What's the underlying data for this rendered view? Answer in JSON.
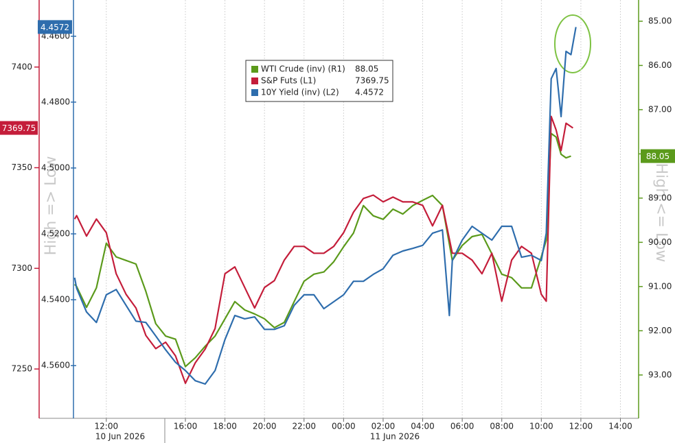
{
  "chart_data": {
    "type": "line",
    "x_axis_ticks_note_free": null,
    "xlim": [
      10.34,
      38.92
    ],
    "xticks": [
      {
        "value": 12,
        "label": "12:00"
      },
      {
        "value": 16,
        "label": "16:00"
      },
      {
        "value": 18,
        "label": "18:00"
      },
      {
        "value": 20,
        "label": "20:00"
      },
      {
        "value": 22,
        "label": "22:00"
      },
      {
        "value": 24,
        "label": "00:00"
      },
      {
        "value": 26,
        "label": "02:00"
      },
      {
        "value": 28,
        "label": "04:00"
      },
      {
        "value": 30,
        "label": "06:00"
      },
      {
        "value": 32,
        "label": "08:00"
      },
      {
        "value": 34,
        "label": "10:00"
      },
      {
        "value": 36,
        "label": "12:00"
      },
      {
        "value": 38,
        "label": "14:00"
      }
    ],
    "date_labels": [
      "10 Jun 2026",
      "11 Jun 2026"
    ],
    "ylabel": "High => Low",
    "y3label": "High <= Low",
    "ylim": [
      7225.5,
      7433.3
    ],
    "yticks": [
      7250,
      7300,
      7350,
      7400
    ],
    "y2lim": [
      4.576,
      4.449
    ],
    "y2ticks": [
      {
        "value": 4.46,
        "label": "4.4600"
      },
      {
        "value": 4.48,
        "label": "4.4800"
      },
      {
        "value": 4.5,
        "label": "4.5000"
      },
      {
        "value": 4.52,
        "label": "4.5200"
      },
      {
        "value": 4.54,
        "label": "4.5400"
      },
      {
        "value": 4.56,
        "label": "4.5600"
      }
    ],
    "y3lim": [
      93.98,
      84.52
    ],
    "y3ticks": [
      {
        "value": 85,
        "label": "85.00"
      },
      {
        "value": 86,
        "label": "86.00"
      },
      {
        "value": 87,
        "label": "87.00"
      },
      {
        "value": 88,
        "label": "88.00"
      },
      {
        "value": 89,
        "label": "89.00"
      },
      {
        "value": 90,
        "label": "90.00"
      },
      {
        "value": 91,
        "label": "91.00"
      },
      {
        "value": 92,
        "label": "92.00"
      },
      {
        "value": 93,
        "label": "93.00"
      }
    ],
    "grid": true,
    "series": [
      {
        "name": "WTI Crude (inv) (R1)",
        "axis": "y3",
        "color": "#5b9a1b",
        "last": 88.05,
        "x": [
          10.4,
          10.5,
          11,
          11.5,
          12,
          12.5,
          13,
          13.5,
          14,
          14.5,
          15,
          15.5,
          16,
          16.5,
          17,
          17.5,
          18,
          18.5,
          19,
          19.5,
          20,
          20.5,
          21,
          21.5,
          22,
          22.5,
          23,
          23.5,
          24,
          24.5,
          25,
          25.5,
          26,
          26.5,
          27,
          27.5,
          28,
          28.5,
          29,
          29.5,
          30,
          30.5,
          31,
          31.5,
          32,
          32.5,
          33,
          33.5,
          34,
          34.25,
          34.5,
          34.75,
          35,
          35.25,
          35.5
        ],
        "values": [
          90.95,
          91.0,
          91.47,
          91.03,
          90.02,
          90.33,
          90.41,
          90.49,
          91.11,
          91.84,
          92.12,
          92.19,
          92.81,
          92.61,
          92.35,
          92.12,
          91.73,
          91.34,
          91.53,
          91.62,
          91.73,
          91.93,
          91.81,
          91.34,
          90.88,
          90.72,
          90.67,
          90.44,
          90.1,
          89.79,
          89.17,
          89.4,
          89.48,
          89.25,
          89.36,
          89.17,
          89.05,
          88.94,
          89.17,
          90.41,
          90.07,
          89.87,
          89.82,
          90.26,
          90.72,
          90.8,
          91.03,
          91.03,
          90.33,
          89.95,
          87.54,
          87.62,
          88.01,
          88.09,
          88.05
        ]
      },
      {
        "name": "S&P Futs (L1)",
        "axis": "y",
        "color": "#c41d3a",
        "last": 7369.75,
        "x": [
          10.4,
          10.5,
          11,
          11.5,
          12,
          12.5,
          13,
          13.5,
          14,
          14.5,
          15,
          15.5,
          16,
          16.5,
          17,
          17.5,
          18,
          18.5,
          19,
          19.5,
          20,
          20.5,
          21,
          21.5,
          22,
          22.5,
          23,
          23.5,
          24,
          24.5,
          25,
          25.5,
          26,
          26.5,
          27,
          27.5,
          28,
          28.5,
          29,
          29.5,
          30,
          30.5,
          31,
          31.5,
          32,
          32.5,
          33,
          33.5,
          34,
          34.25,
          34.5,
          34.75,
          35,
          35.25,
          35.6
        ],
        "values": [
          7324.5,
          7326.2,
          7316,
          7324.5,
          7317.7,
          7297.3,
          7287.1,
          7280.3,
          7266.7,
          7260.1,
          7263.3,
          7256.5,
          7242.9,
          7253.1,
          7259.9,
          7270.1,
          7297.3,
          7300.7,
          7290.5,
          7280.3,
          7290.5,
          7293.9,
          7304.1,
          7310.9,
          7310.9,
          7307.5,
          7307.5,
          7310.9,
          7317.7,
          7327.9,
          7334.7,
          7336.4,
          7333,
          7335.4,
          7333,
          7333,
          7331.3,
          7321.1,
          7331.3,
          7307.5,
          7307.5,
          7304.1,
          7297.3,
          7307.5,
          7283.7,
          7304.1,
          7310.9,
          7307.5,
          7287.1,
          7283.7,
          7375.5,
          7368.7,
          7358.5,
          7372.1,
          7369.75
        ]
      },
      {
        "name": "10Y Yield (inv) (L2)",
        "axis": "y2",
        "color": "#2e6dad",
        "last": 4.4572,
        "x": [
          10.4,
          10.5,
          11,
          11.5,
          12,
          12.5,
          13,
          13.5,
          14,
          14.5,
          15,
          15.5,
          16,
          16.5,
          17,
          17.5,
          18,
          18.5,
          19,
          19.5,
          20,
          20.5,
          21,
          21.5,
          22,
          22.5,
          23,
          23.5,
          24,
          24.5,
          25,
          25.5,
          26,
          26.5,
          27,
          27.5,
          28,
          28.5,
          29,
          29.35,
          29.5,
          30,
          30.5,
          31,
          31.5,
          32,
          32.5,
          33,
          33.5,
          34,
          34.25,
          34.5,
          34.75,
          35,
          35.25,
          35.5,
          35.75
        ],
        "values": [
          4.5333,
          4.5365,
          4.5437,
          4.5469,
          4.5385,
          4.5369,
          4.5417,
          4.5465,
          4.5469,
          4.551,
          4.5552,
          4.559,
          4.5615,
          4.5646,
          4.5656,
          4.5615,
          4.5521,
          4.5448,
          4.5458,
          4.5452,
          4.549,
          4.549,
          4.5479,
          4.5417,
          4.5385,
          4.5385,
          4.5427,
          4.5406,
          4.5385,
          4.5344,
          4.5344,
          4.5323,
          4.5306,
          4.5265,
          4.5252,
          4.5244,
          4.5235,
          4.5198,
          4.5188,
          4.5448,
          4.5281,
          4.5219,
          4.5177,
          4.5198,
          4.5219,
          4.5177,
          4.5177,
          4.5271,
          4.5265,
          4.5281,
          4.5198,
          4.4729,
          4.4698,
          4.4844,
          4.4646,
          4.4656,
          4.4572
        ]
      }
    ]
  }
}
